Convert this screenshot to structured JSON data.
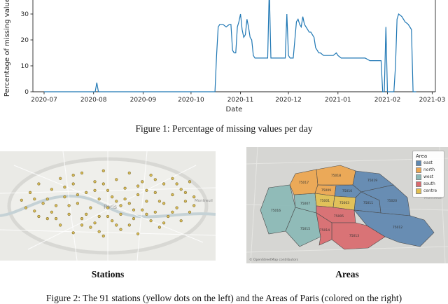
{
  "figure1": {
    "caption": "Figure 1: Percentage of missing values per day"
  },
  "chart_data": {
    "type": "line",
    "title": "",
    "xlabel": "Date",
    "ylabel": "Percentage of missing values",
    "line_color": "#1f77b4",
    "x_domain": [
      -7,
      245
    ],
    "y_ticks": [
      0,
      10,
      20,
      30
    ],
    "x_ticks": [
      {
        "day": 0,
        "label": "2020-07"
      },
      {
        "day": 31,
        "label": "2020-08"
      },
      {
        "day": 62,
        "label": "2020-09"
      },
      {
        "day": 92,
        "label": "2020-10"
      },
      {
        "day": 123,
        "label": "2020-11"
      },
      {
        "day": 153,
        "label": "2020-12"
      },
      {
        "day": 184,
        "label": "2021-01"
      },
      {
        "day": 215,
        "label": "2021-02"
      },
      {
        "day": 243,
        "label": "2021-03"
      }
    ],
    "points": [
      [
        0,
        0
      ],
      [
        10,
        0
      ],
      [
        20,
        0
      ],
      [
        30,
        0
      ],
      [
        32,
        0
      ],
      [
        33,
        3.5
      ],
      [
        34,
        0
      ],
      [
        50,
        0
      ],
      [
        70,
        0
      ],
      [
        90,
        0
      ],
      [
        105,
        0
      ],
      [
        107,
        0
      ],
      [
        108,
        14
      ],
      [
        109,
        25
      ],
      [
        110,
        26
      ],
      [
        112,
        26
      ],
      [
        114,
        25
      ],
      [
        116,
        26
      ],
      [
        117,
        26
      ],
      [
        118,
        16
      ],
      [
        119,
        15
      ],
      [
        120,
        15
      ],
      [
        121,
        25
      ],
      [
        122,
        27
      ],
      [
        123,
        30
      ],
      [
        124,
        24
      ],
      [
        125,
        21
      ],
      [
        126,
        22
      ],
      [
        127,
        28
      ],
      [
        128,
        25
      ],
      [
        129,
        21
      ],
      [
        130,
        20
      ],
      [
        131,
        14
      ],
      [
        132,
        13
      ],
      [
        134,
        13
      ],
      [
        136,
        13
      ],
      [
        138,
        13
      ],
      [
        140,
        13
      ],
      [
        141,
        40
      ],
      [
        142,
        13
      ],
      [
        144,
        13
      ],
      [
        147,
        13
      ],
      [
        150,
        13
      ],
      [
        151,
        13
      ],
      [
        152,
        30
      ],
      [
        153,
        14
      ],
      [
        154,
        13
      ],
      [
        156,
        13
      ],
      [
        158,
        27
      ],
      [
        159,
        28
      ],
      [
        160,
        26
      ],
      [
        161,
        25
      ],
      [
        162,
        29
      ],
      [
        163,
        26
      ],
      [
        164,
        25
      ],
      [
        165,
        24
      ],
      [
        166,
        23
      ],
      [
        167,
        23
      ],
      [
        168,
        22
      ],
      [
        169,
        21
      ],
      [
        170,
        17
      ],
      [
        171,
        16
      ],
      [
        172,
        15
      ],
      [
        173,
        15
      ],
      [
        175,
        14
      ],
      [
        177,
        14
      ],
      [
        179,
        14
      ],
      [
        181,
        14
      ],
      [
        183,
        15
      ],
      [
        184,
        14
      ],
      [
        186,
        13
      ],
      [
        189,
        13
      ],
      [
        192,
        13
      ],
      [
        195,
        13
      ],
      [
        198,
        13
      ],
      [
        201,
        13
      ],
      [
        204,
        12
      ],
      [
        207,
        12
      ],
      [
        210,
        12
      ],
      [
        211,
        12
      ],
      [
        212,
        0
      ],
      [
        213,
        0
      ],
      [
        214,
        25
      ],
      [
        215,
        0
      ],
      [
        217,
        0
      ],
      [
        219,
        0
      ],
      [
        220,
        10
      ],
      [
        221,
        28
      ],
      [
        222,
        30
      ],
      [
        224,
        29
      ],
      [
        226,
        27
      ],
      [
        228,
        26
      ],
      [
        229,
        25
      ],
      [
        230,
        24
      ],
      [
        231,
        0
      ],
      [
        233,
        0
      ]
    ]
  },
  "maps": {
    "stations": {
      "label": "Stations",
      "place_label": "Paris",
      "suburb_label": "Montreuil",
      "dot_color": "#d9bd59",
      "dot_stroke": "#7d6a2a",
      "points": [
        [
          10,
          45
        ],
        [
          14,
          38
        ],
        [
          16,
          55
        ],
        [
          18,
          30
        ],
        [
          20,
          48
        ],
        [
          22,
          62
        ],
        [
          24,
          35
        ],
        [
          26,
          50
        ],
        [
          28,
          25
        ],
        [
          28,
          68
        ],
        [
          30,
          42
        ],
        [
          32,
          58
        ],
        [
          34,
          30
        ],
        [
          34,
          75
        ],
        [
          36,
          48
        ],
        [
          38,
          20
        ],
        [
          38,
          62
        ],
        [
          40,
          38
        ],
        [
          42,
          52
        ],
        [
          42,
          70
        ],
        [
          44,
          28
        ],
        [
          46,
          44
        ],
        [
          46,
          60
        ],
        [
          48,
          18
        ],
        [
          48,
          78
        ],
        [
          50,
          36
        ],
        [
          50,
          52
        ],
        [
          52,
          64
        ],
        [
          54,
          26
        ],
        [
          54,
          46
        ],
        [
          56,
          58
        ],
        [
          56,
          72
        ],
        [
          58,
          34
        ],
        [
          60,
          48
        ],
        [
          60,
          20
        ],
        [
          62,
          62
        ],
        [
          64,
          40
        ],
        [
          64,
          76
        ],
        [
          66,
          28
        ],
        [
          66,
          54
        ],
        [
          68,
          46
        ],
        [
          70,
          64
        ],
        [
          70,
          22
        ],
        [
          72,
          38
        ],
        [
          72,
          56
        ],
        [
          74,
          70
        ],
        [
          76,
          30
        ],
        [
          76,
          48
        ],
        [
          78,
          60
        ],
        [
          80,
          40
        ],
        [
          80,
          25
        ],
        [
          82,
          52
        ],
        [
          84,
          64
        ],
        [
          84,
          35
        ],
        [
          86,
          46
        ],
        [
          88,
          56
        ],
        [
          88,
          28
        ],
        [
          90,
          42
        ],
        [
          12,
          52
        ],
        [
          16,
          44
        ],
        [
          24,
          56
        ],
        [
          30,
          33
        ],
        [
          36,
          40
        ],
        [
          40,
          58
        ],
        [
          44,
          66
        ],
        [
          48,
          30
        ],
        [
          52,
          42
        ],
        [
          56,
          50
        ],
        [
          60,
          68
        ],
        [
          64,
          32
        ],
        [
          68,
          58
        ],
        [
          72,
          26
        ],
        [
          76,
          66
        ],
        [
          80,
          56
        ],
        [
          86,
          38
        ],
        [
          22,
          44
        ],
        [
          26,
          62
        ],
        [
          32,
          50
        ],
        [
          38,
          68
        ],
        [
          44,
          36
        ],
        [
          50,
          60
        ],
        [
          58,
          44
        ],
        [
          62,
          54
        ],
        [
          68,
          36
        ],
        [
          74,
          46
        ],
        [
          82,
          30
        ],
        [
          34,
          22
        ],
        [
          46,
          74
        ],
        [
          54,
          68
        ],
        [
          18,
          60
        ],
        [
          90,
          50
        ]
      ]
    },
    "areas": {
      "label": "Areas",
      "outside_label": "Montreuil",
      "attribution": "© OpenStreetMap contributors",
      "legend": {
        "title": "Area",
        "entries": [
          {
            "label": "east",
            "color": "#5e87b0"
          },
          {
            "label": "north",
            "color": "#eda54d"
          },
          {
            "label": "west",
            "color": "#8ab8b5"
          },
          {
            "label": "south",
            "color": "#d96a6e"
          },
          {
            "label": "centre",
            "color": "#e2bf4f"
          }
        ]
      },
      "regions": [
        {
          "code": "75016",
          "group": "west",
          "points": [
            [
              18,
              80
            ],
            [
              30,
              48
            ],
            [
              60,
              44
            ],
            [
              68,
              76
            ],
            [
              54,
              110
            ],
            [
              30,
              114
            ]
          ],
          "label_at": [
            40,
            82
          ]
        },
        {
          "code": "75015",
          "group": "west",
          "points": [
            [
              54,
              110
            ],
            [
              68,
              76
            ],
            [
              98,
              84
            ],
            [
              104,
              118
            ],
            [
              74,
              132
            ]
          ],
          "label_at": [
            82,
            108
          ]
        },
        {
          "code": "75007",
          "group": "west",
          "points": [
            [
              68,
              76
            ],
            [
              66,
              58
            ],
            [
              96,
              56
            ],
            [
              98,
              74
            ],
            [
              98,
              84
            ]
          ],
          "label_at": [
            82,
            72
          ]
        },
        {
          "code": "75017",
          "group": "north",
          "points": [
            [
              60,
              44
            ],
            [
              68,
              28
            ],
            [
              98,
              22
            ],
            [
              100,
              44
            ],
            [
              96,
              56
            ],
            [
              66,
              58
            ]
          ],
          "label_at": [
            80,
            42
          ]
        },
        {
          "code": "75018",
          "group": "north",
          "points": [
            [
              98,
              22
            ],
            [
              132,
              16
            ],
            [
              154,
              24
            ],
            [
              150,
              44
            ],
            [
              102,
              44
            ],
            [
              100,
              44
            ]
          ],
          "label_at": [
            126,
            32
          ]
        },
        {
          "code": "75009",
          "group": "north",
          "points": [
            [
              100,
              44
            ],
            [
              126,
              45
            ],
            [
              124,
              60
            ],
            [
              96,
              56
            ]
          ],
          "label_at": [
            112,
            53
          ]
        },
        {
          "code": "75019",
          "group": "east",
          "points": [
            [
              154,
              24
            ],
            [
              188,
              28
            ],
            [
              208,
              44
            ],
            [
              162,
              54
            ],
            [
              150,
              44
            ]
          ],
          "label_at": [
            178,
            39
          ]
        },
        {
          "code": "75010",
          "group": "east",
          "points": [
            [
              126,
              45
            ],
            [
              150,
              44
            ],
            [
              162,
              54
            ],
            [
              154,
              62
            ],
            [
              124,
              60
            ]
          ],
          "label_at": [
            142,
            54
          ]
        },
        {
          "code": "75011",
          "group": "east",
          "points": [
            [
              154,
              62
            ],
            [
              162,
              54
            ],
            [
              188,
              66
            ],
            [
              190,
              84
            ],
            [
              152,
              80
            ]
          ],
          "label_at": [
            172,
            71
          ]
        },
        {
          "code": "75020",
          "group": "east",
          "points": [
            [
              162,
              54
            ],
            [
              208,
              44
            ],
            [
              228,
              62
            ],
            [
              232,
              88
            ],
            [
              190,
              84
            ],
            [
              188,
              66
            ]
          ],
          "label_at": [
            206,
            68
          ]
        },
        {
          "code": "75012",
          "group": "east",
          "points": [
            [
              152,
              80
            ],
            [
              190,
              84
            ],
            [
              232,
              88
            ],
            [
              252,
              94
            ],
            [
              266,
              112
            ],
            [
              246,
              132
            ],
            [
              216,
              126
            ],
            [
              196,
              118
            ],
            [
              170,
              102
            ]
          ],
          "label_at": [
            214,
            106
          ]
        },
        {
          "code": "75001",
          "group": "centre",
          "points": [
            [
              96,
              56
            ],
            [
              124,
              60
            ],
            [
              122,
              76
            ],
            [
              98,
              74
            ]
          ],
          "label_at": [
            110,
            68
          ]
        },
        {
          "code": "75003",
          "group": "centre",
          "points": [
            [
              124,
              60
            ],
            [
              154,
              62
            ],
            [
              152,
              80
            ],
            [
              122,
              76
            ]
          ],
          "label_at": [
            138,
            71
          ]
        },
        {
          "code": "75005",
          "group": "south",
          "points": [
            [
              98,
              84
            ],
            [
              98,
              74
            ],
            [
              122,
              76
            ],
            [
              152,
              80
            ],
            [
              154,
              98
            ],
            [
              120,
              98
            ]
          ],
          "label_at": [
            130,
            90
          ]
        },
        {
          "code": "75013",
          "group": "south",
          "points": [
            [
              120,
              98
            ],
            [
              154,
              98
            ],
            [
              170,
              102
            ],
            [
              196,
              118
            ],
            [
              172,
              134
            ],
            [
              138,
              136
            ],
            [
              120,
              122
            ]
          ],
          "label_at": [
            152,
            118
          ]
        },
        {
          "code": "75014",
          "group": "south",
          "points": [
            [
              98,
              84
            ],
            [
              120,
              98
            ],
            [
              120,
              122
            ],
            [
              102,
              130
            ],
            [
              104,
              118
            ]
          ],
          "label_at": [
            110,
            110
          ]
        }
      ]
    }
  },
  "figure2": {
    "caption": "Figure 2: The 91 stations (yellow dots on the left) and the Areas of Paris (colored on the right)"
  }
}
